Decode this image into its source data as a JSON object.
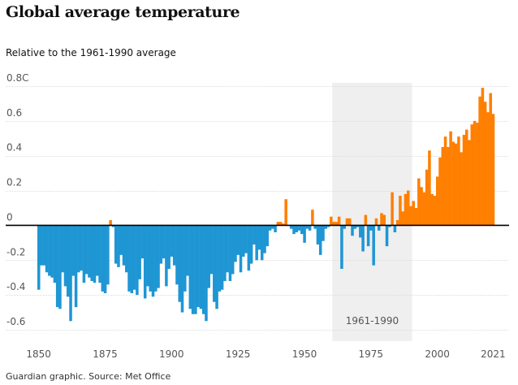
{
  "title": "Global average temperature",
  "subtitle": "Relative to the 1961-1990 average",
  "source": "Guardian graphic. Source: Met Office",
  "colors": {
    "negative": "#1f96d4",
    "positive": "#ff7f00",
    "band": "#efefef",
    "zeroline": "#000000",
    "gridline": "#dcdcdc",
    "text": "#555555"
  },
  "chart_data": {
    "type": "bar",
    "title": "Global average temperature",
    "subtitle": "Relative to the 1961-1990 average",
    "ylim": [
      -0.6,
      0.8
    ],
    "yticks": [
      {
        "value": 0.8,
        "label": "0.8C"
      },
      {
        "value": 0.6,
        "label": "0.6"
      },
      {
        "value": 0.4,
        "label": "0.4"
      },
      {
        "value": 0.2,
        "label": "0.2"
      },
      {
        "value": 0,
        "label": "0"
      },
      {
        "value": -0.2,
        "label": "-0.2"
      },
      {
        "value": -0.4,
        "label": "-0.4"
      },
      {
        "value": -0.6,
        "label": "-0.6"
      }
    ],
    "xticks": [
      {
        "value": 1850,
        "label": "1850"
      },
      {
        "value": 1875,
        "label": "1875"
      },
      {
        "value": 1900,
        "label": "1900"
      },
      {
        "value": 1925,
        "label": "1925"
      },
      {
        "value": 1950,
        "label": "1950"
      },
      {
        "value": 1975,
        "label": "1975"
      },
      {
        "value": 2000,
        "label": "2000"
      },
      {
        "value": 2021,
        "label": "2021"
      }
    ],
    "grid": "horizontal",
    "reference_band": {
      "start": 1961,
      "end": 1990,
      "label": "1961-1990"
    },
    "years_start": 1850,
    "years_end": 2021,
    "values": [
      -0.37,
      -0.23,
      -0.23,
      -0.27,
      -0.29,
      -0.3,
      -0.33,
      -0.47,
      -0.48,
      -0.27,
      -0.35,
      -0.41,
      -0.55,
      -0.29,
      -0.47,
      -0.27,
      -0.26,
      -0.33,
      -0.28,
      -0.3,
      -0.32,
      -0.33,
      -0.29,
      -0.33,
      -0.38,
      -0.39,
      -0.34,
      0.03,
      -0.01,
      -0.22,
      -0.24,
      -0.17,
      -0.23,
      -0.27,
      -0.38,
      -0.39,
      -0.37,
      -0.4,
      -0.31,
      -0.19,
      -0.42,
      -0.35,
      -0.38,
      -0.41,
      -0.38,
      -0.36,
      -0.22,
      -0.19,
      -0.35,
      -0.25,
      -0.18,
      -0.23,
      -0.34,
      -0.44,
      -0.5,
      -0.38,
      -0.29,
      -0.48,
      -0.51,
      -0.51,
      -0.47,
      -0.48,
      -0.51,
      -0.55,
      -0.36,
      -0.28,
      -0.44,
      -0.48,
      -0.38,
      -0.37,
      -0.32,
      -0.27,
      -0.32,
      -0.28,
      -0.21,
      -0.17,
      -0.27,
      -0.18,
      -0.16,
      -0.26,
      -0.22,
      -0.11,
      -0.2,
      -0.14,
      -0.2,
      -0.16,
      -0.12,
      -0.03,
      -0.02,
      -0.04,
      0.02,
      0.02,
      0.01,
      0.15,
      0.0,
      -0.02,
      -0.05,
      -0.04,
      -0.03,
      -0.05,
      -0.1,
      -0.02,
      -0.03,
      0.09,
      -0.02,
      -0.11,
      -0.17,
      -0.09,
      -0.02,
      -0.01,
      0.05,
      0.02,
      0.02,
      0.05,
      -0.25,
      -0.02,
      0.04,
      0.04,
      -0.06,
      -0.02,
      -0.01,
      -0.07,
      -0.15,
      0.06,
      -0.12,
      -0.03,
      -0.23,
      0.04,
      -0.03,
      0.07,
      0.06,
      -0.12,
      -0.01,
      0.19,
      -0.04,
      0.03,
      0.17,
      0.08,
      0.18,
      0.2,
      0.11,
      0.14,
      0.1,
      0.27,
      0.22,
      0.19,
      0.32,
      0.43,
      0.18,
      0.17,
      0.28,
      0.39,
      0.45,
      0.51,
      0.45,
      0.54,
      0.48,
      0.47,
      0.51,
      0.42,
      0.52,
      0.55,
      0.49,
      0.58,
      0.6,
      0.59,
      0.74,
      0.79,
      0.71,
      0.65,
      0.76,
      0.64
    ]
  }
}
